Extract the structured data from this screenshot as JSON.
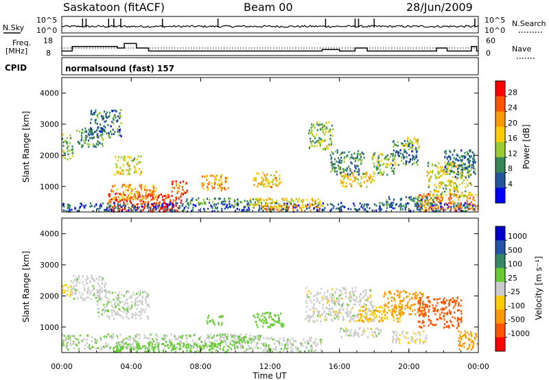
{
  "header": {
    "station": "Saskatoon (fitACF)",
    "beam": "Beam 00",
    "date": "28/Jun/2009"
  },
  "noise_panel": {
    "left_label": "N.Sky",
    "right_label": "N.Search",
    "left_ticks": [
      "10^5",
      "10^0"
    ],
    "right_ticks": [
      "10^5",
      "10^0"
    ]
  },
  "freq_panel": {
    "left_label_1": "Freq.",
    "left_label_2": "[MHz]",
    "right_label": "Nave",
    "left_ticks": [
      "18",
      "8"
    ],
    "right_ticks": [
      "60",
      "0"
    ]
  },
  "cpid": {
    "label": "CPID",
    "program": "normalsound (fast) 157"
  },
  "axes": {
    "ylabel": "Slant Range [km]",
    "xlabel": "Time UT",
    "y_ticks": [
      "1000",
      "2000",
      "3000",
      "4000"
    ],
    "x_ticks": [
      "00:00",
      "04:00",
      "08:00",
      "12:00",
      "16:00",
      "20:00",
      "00:00"
    ]
  },
  "power_colorbar": {
    "label": "Power [dB]",
    "ticks": [
      "28",
      "24",
      "20",
      "16",
      "12",
      "8",
      "4"
    ],
    "colors": [
      "#ff0000",
      "#ff5500",
      "#ff9900",
      "#ffcc00",
      "#99cc33",
      "#338855",
      "#225599",
      "#0000ff"
    ]
  },
  "velocity_colorbar": {
    "label": "Velocity [m s⁻¹]",
    "ticks": [
      "1000",
      "500",
      "100",
      "25",
      "-25",
      "-100",
      "-500",
      "-1000"
    ],
    "colors": [
      "#0000cc",
      "#2255aa",
      "#338866",
      "#66cc33",
      "#cccccc",
      "#ffcc00",
      "#ff9900",
      "#ff5500",
      "#ff0000"
    ]
  },
  "chart_data": {
    "type": "heatmap",
    "x_range_hours": [
      0,
      24
    ],
    "y_range_km": [
      180,
      4500
    ],
    "power_range_db": [
      0,
      30
    ],
    "velocity_range_ms": [
      -1000,
      1000
    ],
    "nsky_spikes_hours": [
      1.2,
      1.4,
      2.7,
      3.0,
      3.4,
      5.8,
      9.0,
      15.2,
      16.9,
      17.1,
      18.0,
      23.8
    ],
    "freq_steps": [
      {
        "t": 0.0,
        "mhz": 11
      },
      {
        "t": 0.6,
        "mhz": 14
      },
      {
        "t": 3.2,
        "mhz": 13
      },
      {
        "t": 3.6,
        "mhz": 16
      },
      {
        "t": 4.3,
        "mhz": 13
      },
      {
        "t": 5.0,
        "mhz": 11
      },
      {
        "t": 15.0,
        "mhz": 12
      },
      {
        "t": 16.0,
        "mhz": 11
      },
      {
        "t": 16.9,
        "mhz": 13
      },
      {
        "t": 17.6,
        "mhz": 11
      },
      {
        "t": 21.6,
        "mhz": 13
      },
      {
        "t": 22.2,
        "mhz": 11
      },
      {
        "t": 23.6,
        "mhz": 14
      },
      {
        "t": 23.9,
        "mhz": 11
      }
    ],
    "nave_level": 30,
    "power_regions": [
      {
        "t0": 2.6,
        "t1": 7.0,
        "r0": 200,
        "r1": 800,
        "db": 28
      },
      {
        "t0": 5.0,
        "t1": 6.4,
        "r0": 200,
        "r1": 500,
        "db": 30
      },
      {
        "t0": 2.8,
        "t1": 5.5,
        "r0": 600,
        "r1": 1100,
        "db": 22
      },
      {
        "t0": 6.3,
        "t1": 7.2,
        "r0": 800,
        "r1": 1200,
        "db": 26
      },
      {
        "t0": 0.0,
        "t1": 24.0,
        "r0": 200,
        "r1": 500,
        "db": 6
      },
      {
        "t0": 7.0,
        "t1": 11.5,
        "r0": 450,
        "r1": 650,
        "db": 10
      },
      {
        "t0": 10.6,
        "t1": 15.0,
        "r0": 350,
        "r1": 650,
        "db": 18
      },
      {
        "t0": 11.6,
        "t1": 14.8,
        "r0": 250,
        "r1": 450,
        "db": 22
      },
      {
        "t0": 20.5,
        "t1": 24.0,
        "r0": 250,
        "r1": 800,
        "db": 24
      },
      {
        "t0": 18.6,
        "t1": 21.5,
        "r0": 400,
        "r1": 700,
        "db": 8
      },
      {
        "t0": 8.0,
        "t1": 9.6,
        "r0": 900,
        "r1": 1400,
        "db": 22
      },
      {
        "t0": 11.0,
        "t1": 12.6,
        "r0": 1000,
        "r1": 1500,
        "db": 20
      },
      {
        "t0": 16.0,
        "t1": 18.0,
        "r0": 1000,
        "r1": 1500,
        "db": 18
      },
      {
        "t0": 17.8,
        "t1": 19.2,
        "r0": 1400,
        "r1": 2100,
        "db": 14
      },
      {
        "t0": 21.0,
        "t1": 23.6,
        "r0": 700,
        "r1": 1800,
        "db": 16
      },
      {
        "t0": 0.0,
        "t1": 0.6,
        "r0": 1900,
        "r1": 2700,
        "db": 14
      },
      {
        "t0": 0.8,
        "t1": 2.4,
        "r0": 2300,
        "r1": 2900,
        "db": 10
      },
      {
        "t0": 1.6,
        "t1": 3.4,
        "r0": 2600,
        "r1": 3500,
        "db": 8
      },
      {
        "t0": 3.0,
        "t1": 4.6,
        "r0": 1400,
        "r1": 2000,
        "db": 16
      },
      {
        "t0": 14.2,
        "t1": 15.6,
        "r0": 2200,
        "r1": 3100,
        "db": 14
      },
      {
        "t0": 15.4,
        "t1": 17.4,
        "r0": 1400,
        "r1": 2200,
        "db": 10
      },
      {
        "t0": 19.0,
        "t1": 20.5,
        "r0": 1700,
        "r1": 2500,
        "db": 8
      },
      {
        "t0": 19.6,
        "t1": 20.6,
        "r0": 2200,
        "r1": 2600,
        "db": 16
      },
      {
        "t0": 22.0,
        "t1": 23.8,
        "r0": 1300,
        "r1": 2200,
        "db": 8
      }
    ],
    "velocity_regions": [
      {
        "t0": 0.0,
        "t1": 10.5,
        "r0": 300,
        "r1": 800,
        "v": 20
      },
      {
        "t0": 3.0,
        "t1": 10.0,
        "r0": 200,
        "r1": 500,
        "v": 60
      },
      {
        "t0": 10.0,
        "t1": 15.0,
        "r0": 200,
        "r1": 700,
        "v": 10
      },
      {
        "t0": 8.5,
        "t1": 11.5,
        "r0": 500,
        "r1": 800,
        "v": 30
      },
      {
        "t0": 0.5,
        "t1": 2.5,
        "r0": 1900,
        "r1": 2700,
        "v": 5
      },
      {
        "t0": 2.0,
        "t1": 5.0,
        "r0": 1300,
        "r1": 2200,
        "v": 5
      },
      {
        "t0": 0.0,
        "t1": 0.5,
        "r0": 2000,
        "r1": 2400,
        "v": -60
      },
      {
        "t0": 11.0,
        "t1": 12.8,
        "r0": 1000,
        "r1": 1500,
        "v": 60
      },
      {
        "t0": 8.3,
        "t1": 9.4,
        "r0": 1100,
        "r1": 1400,
        "v": 40
      },
      {
        "t0": 14.0,
        "t1": 18.0,
        "r0": 1200,
        "r1": 2300,
        "v": 0
      },
      {
        "t0": 17.0,
        "t1": 19.5,
        "r0": 1200,
        "r1": 1700,
        "v": -80
      },
      {
        "t0": 18.5,
        "t1": 20.8,
        "r0": 1400,
        "r1": 2200,
        "v": -250
      },
      {
        "t0": 20.5,
        "t1": 23.0,
        "r0": 1000,
        "r1": 2000,
        "v": -600
      },
      {
        "t0": 22.8,
        "t1": 24.0,
        "r0": 300,
        "r1": 900,
        "v": -300
      },
      {
        "t0": 16.0,
        "t1": 18.5,
        "r0": 700,
        "r1": 1000,
        "v": 0
      },
      {
        "t0": 19.0,
        "t1": 21.0,
        "r0": 500,
        "r1": 900,
        "v": -20
      }
    ]
  }
}
